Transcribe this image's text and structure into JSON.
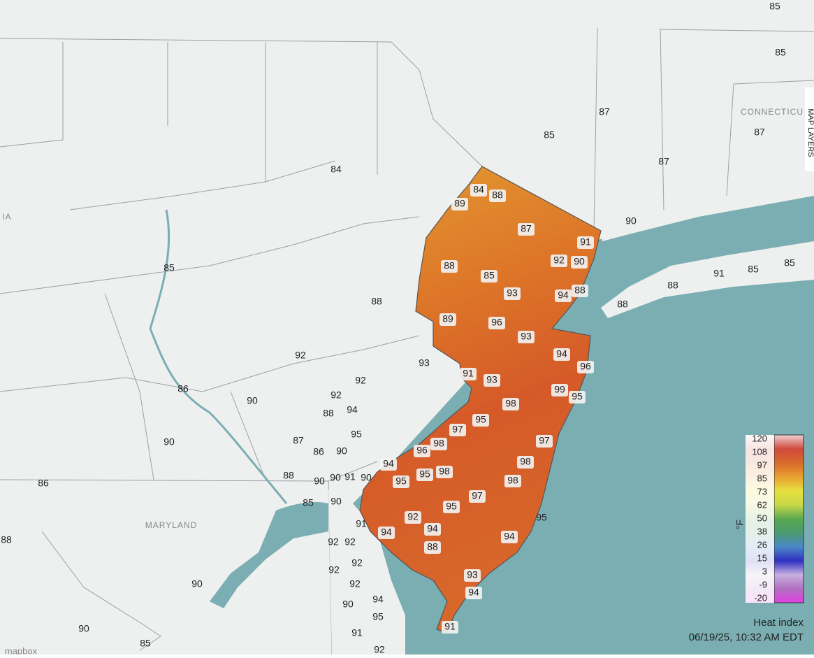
{
  "map": {
    "place_labels": [
      "IA",
      "MARYLAND",
      "CONNECTICU"
    ],
    "new_jersey_readings": [
      84,
      88,
      89,
      87,
      91,
      92,
      90,
      88,
      85,
      93,
      88,
      94,
      89,
      96,
      93,
      94,
      96,
      91,
      93,
      99,
      95,
      98,
      95,
      97,
      98,
      96,
      97,
      94,
      98,
      95,
      98,
      95,
      98,
      97,
      95,
      92,
      94,
      88,
      94,
      94,
      93,
      94,
      91
    ],
    "regional_readings": [
      85,
      85,
      87,
      85,
      87,
      87,
      84,
      90,
      91,
      85,
      85,
      88,
      88,
      85,
      88,
      92,
      93,
      92,
      86,
      90,
      92,
      94,
      88,
      95,
      87,
      86,
      90,
      90,
      86,
      88,
      90,
      90,
      91,
      90,
      85,
      90,
      91,
      92,
      92,
      92,
      92,
      92,
      90,
      94,
      95,
      91,
      92,
      90,
      90,
      85,
      88,
      95
    ],
    "attribution": "mapbox"
  },
  "layers_tab": {
    "label": "MAP LAYERS"
  },
  "legend": {
    "unit": "°F",
    "ticks": [
      120,
      108,
      97,
      85,
      73,
      62,
      50,
      38,
      26,
      15,
      3,
      -9,
      -20
    ],
    "colors": [
      "#f0d0d4",
      "#d04a3c",
      "#d86a2c",
      "#e8a030",
      "#e6e040",
      "#c8d848",
      "#5aa850",
      "#4a9a70",
      "#4a88c8",
      "#3030c0",
      "#c8b0e0",
      "#b070c0",
      "#e040e0"
    ],
    "title": "Heat index",
    "timestamp": "06/19/25, 10:32 AM EDT"
  }
}
